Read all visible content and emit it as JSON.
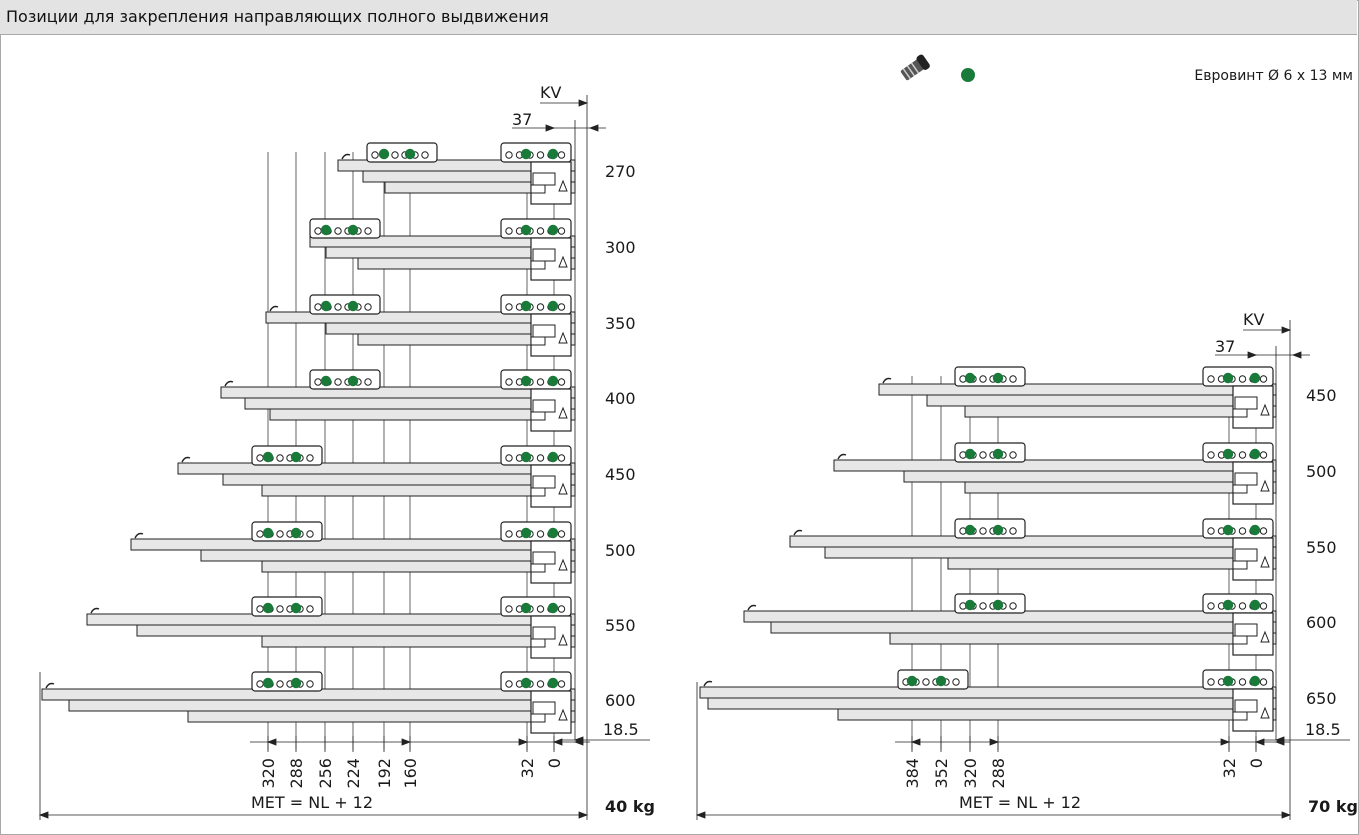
{
  "header": {
    "title": "Позиции для закрепления направляющих полного выдвижения"
  },
  "legend": {
    "text": "Евровинт Ø 6 x 13 мм",
    "dot_color": "#1a7a3a"
  },
  "colors": {
    "line": "#222222",
    "rail": "#e4e4e4",
    "dot": "#1a7a3a",
    "header_bg": "#e3e3e3"
  },
  "left_group": {
    "kv_label": "KV",
    "top_dim": "37",
    "offset_dim": "18.5",
    "lengths": [
      "270",
      "300",
      "350",
      "400",
      "450",
      "500",
      "550",
      "600"
    ],
    "bottom_dims": [
      "320",
      "288",
      "256",
      "224",
      "192",
      "160",
      "32",
      "0"
    ],
    "formula": "MET = NL + 12",
    "load": "40 kg"
  },
  "right_group": {
    "kv_label": "KV",
    "top_dim": "37",
    "offset_dim": "18.5",
    "lengths": [
      "450",
      "500",
      "550",
      "600",
      "650"
    ],
    "bottom_dims": [
      "384",
      "352",
      "320",
      "288",
      "32",
      "0"
    ],
    "formula": "MET = NL + 12",
    "load": "70 kg"
  }
}
